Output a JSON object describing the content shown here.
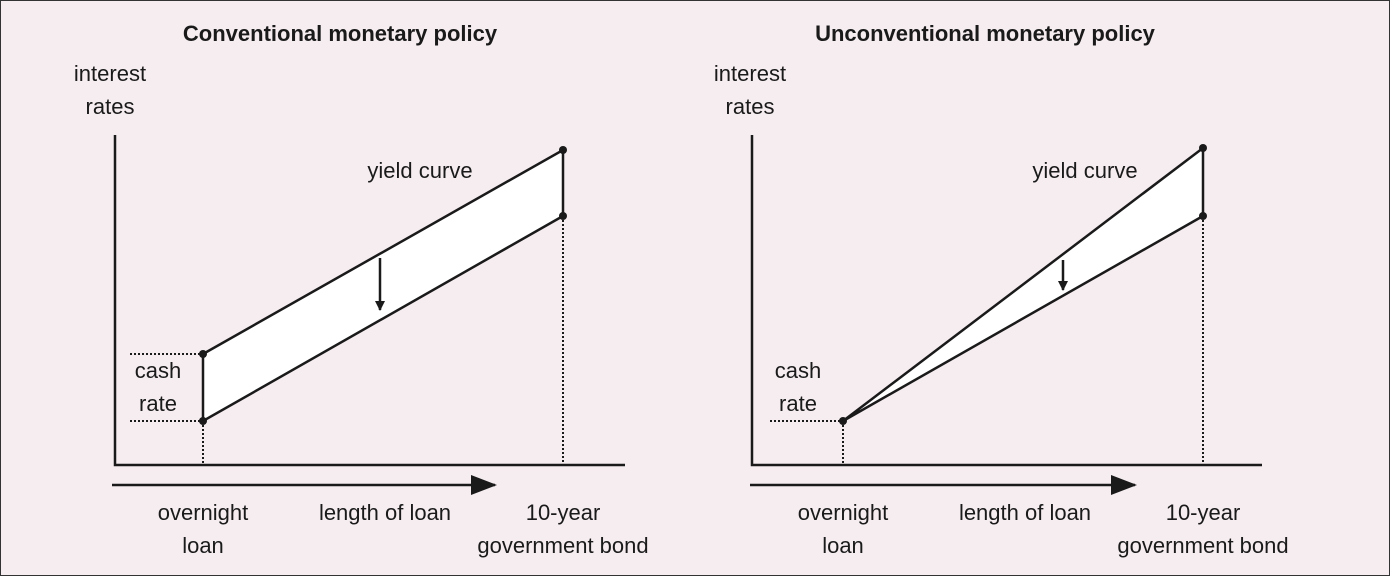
{
  "panels": [
    {
      "title": "Conventional monetary policy",
      "y_axis_label": [
        "interest",
        "rates"
      ],
      "curve_label": "yield curve",
      "cash_rate_label": [
        "cash",
        "rate"
      ],
      "x_axis_label": "length of loan",
      "start_label": [
        "overnight",
        "loan"
      ],
      "end_label": [
        "10-year",
        "government bond"
      ]
    },
    {
      "title": "Unconventional monetary policy",
      "y_axis_label": [
        "interest",
        "rates"
      ],
      "curve_label": "yield curve",
      "cash_rate_label": [
        "cash",
        "rate"
      ],
      "x_axis_label": "length of loan",
      "start_label": [
        "overnight",
        "loan"
      ],
      "end_label": [
        "10-year",
        "government bond"
      ]
    }
  ]
}
